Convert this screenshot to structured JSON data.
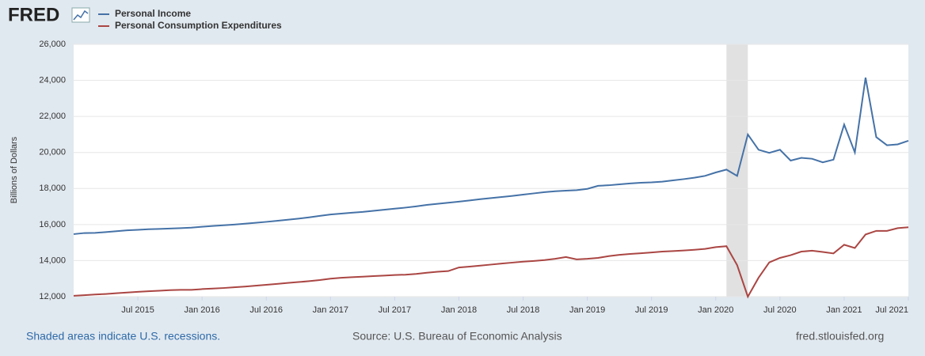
{
  "chart_data": {
    "type": "line",
    "logo": "FRED",
    "ylabel": "Billions of Dollars",
    "footer_left": "Shaded areas indicate U.S. recessions.",
    "footer_center": "Source: U.S. Bureau of Economic Analysis",
    "footer_right": "fred.stlouisfed.org",
    "x": [
      "2015-01",
      "2015-02",
      "2015-03",
      "2015-04",
      "2015-05",
      "2015-06",
      "2015-07",
      "2015-08",
      "2015-09",
      "2015-10",
      "2015-11",
      "2015-12",
      "2016-01",
      "2016-02",
      "2016-03",
      "2016-04",
      "2016-05",
      "2016-06",
      "2016-07",
      "2016-08",
      "2016-09",
      "2016-10",
      "2016-11",
      "2016-12",
      "2017-01",
      "2017-02",
      "2017-03",
      "2017-04",
      "2017-05",
      "2017-06",
      "2017-07",
      "2017-08",
      "2017-09",
      "2017-10",
      "2017-11",
      "2017-12",
      "2018-01",
      "2018-02",
      "2018-03",
      "2018-04",
      "2018-05",
      "2018-06",
      "2018-07",
      "2018-08",
      "2018-09",
      "2018-10",
      "2018-11",
      "2018-12",
      "2019-01",
      "2019-02",
      "2019-03",
      "2019-04",
      "2019-05",
      "2019-06",
      "2019-07",
      "2019-08",
      "2019-09",
      "2019-10",
      "2019-11",
      "2019-12",
      "2020-01",
      "2020-02",
      "2020-03",
      "2020-04",
      "2020-05",
      "2020-06",
      "2020-07",
      "2020-08",
      "2020-09",
      "2020-10",
      "2020-11",
      "2020-12",
      "2021-01",
      "2021-02",
      "2021-03",
      "2021-04",
      "2021-05",
      "2021-06",
      "2021-07"
    ],
    "series": [
      {
        "name": "Personal Income",
        "color": "#4572a7",
        "values": [
          15470,
          15530,
          15540,
          15580,
          15630,
          15680,
          15710,
          15740,
          15760,
          15780,
          15800,
          15830,
          15880,
          15920,
          15960,
          16000,
          16050,
          16100,
          16150,
          16210,
          16270,
          16330,
          16400,
          16480,
          16560,
          16610,
          16660,
          16700,
          16760,
          16820,
          16880,
          16940,
          17010,
          17090,
          17150,
          17210,
          17270,
          17340,
          17410,
          17470,
          17530,
          17590,
          17660,
          17730,
          17800,
          17850,
          17880,
          17910,
          17980,
          18150,
          18180,
          18230,
          18280,
          18320,
          18340,
          18380,
          18450,
          18520,
          18600,
          18700,
          18890,
          19050,
          18700,
          21000,
          20150,
          19980,
          20150,
          19550,
          19700,
          19650,
          19450,
          19600,
          21550,
          20000,
          24150,
          20850,
          20400,
          20450,
          20650
        ]
      },
      {
        "name": "Personal Consumption Expenditures",
        "color": "#aa4643",
        "values": [
          12050,
          12080,
          12120,
          12150,
          12190,
          12230,
          12270,
          12300,
          12330,
          12360,
          12380,
          12380,
          12420,
          12450,
          12480,
          12520,
          12560,
          12610,
          12660,
          12710,
          12760,
          12810,
          12860,
          12920,
          13000,
          13050,
          13080,
          13110,
          13140,
          13170,
          13200,
          13220,
          13260,
          13330,
          13380,
          13420,
          13620,
          13670,
          13720,
          13780,
          13840,
          13890,
          13940,
          13980,
          14030,
          14100,
          14200,
          14070,
          14100,
          14150,
          14250,
          14320,
          14370,
          14410,
          14450,
          14500,
          14530,
          14560,
          14600,
          14650,
          14750,
          14800,
          13750,
          12000,
          13050,
          13900,
          14150,
          14300,
          14500,
          14550,
          14480,
          14400,
          14880,
          14700,
          15450,
          15650,
          15650,
          15800,
          15850
        ]
      }
    ],
    "recessions": [
      {
        "start": "2020-02",
        "end": "2020-04"
      }
    ],
    "xticks": [
      {
        "value": "2015-07",
        "label": "Jul 2015"
      },
      {
        "value": "2016-01",
        "label": "Jan 2016"
      },
      {
        "value": "2016-07",
        "label": "Jul 2016"
      },
      {
        "value": "2017-01",
        "label": "Jan 2017"
      },
      {
        "value": "2017-07",
        "label": "Jul 2017"
      },
      {
        "value": "2018-01",
        "label": "Jan 2018"
      },
      {
        "value": "2018-07",
        "label": "Jul 2018"
      },
      {
        "value": "2019-01",
        "label": "Jan 2019"
      },
      {
        "value": "2019-07",
        "label": "Jul 2019"
      },
      {
        "value": "2020-01",
        "label": "Jan 2020"
      },
      {
        "value": "2020-07",
        "label": "Jul 2020"
      },
      {
        "value": "2021-01",
        "label": "Jan 2021"
      },
      {
        "value": "2021-07",
        "label": "Jul 2021"
      }
    ],
    "ylim": [
      12000,
      26000
    ],
    "yticks": [
      {
        "value": 12000,
        "label": "12,000"
      },
      {
        "value": 14000,
        "label": "14,000"
      },
      {
        "value": 16000,
        "label": "16,000"
      },
      {
        "value": 18000,
        "label": "18,000"
      },
      {
        "value": 20000,
        "label": "20,000"
      },
      {
        "value": 22000,
        "label": "22,000"
      },
      {
        "value": 24000,
        "label": "24,000"
      },
      {
        "value": 26000,
        "label": "26,000"
      }
    ],
    "grid": true
  }
}
